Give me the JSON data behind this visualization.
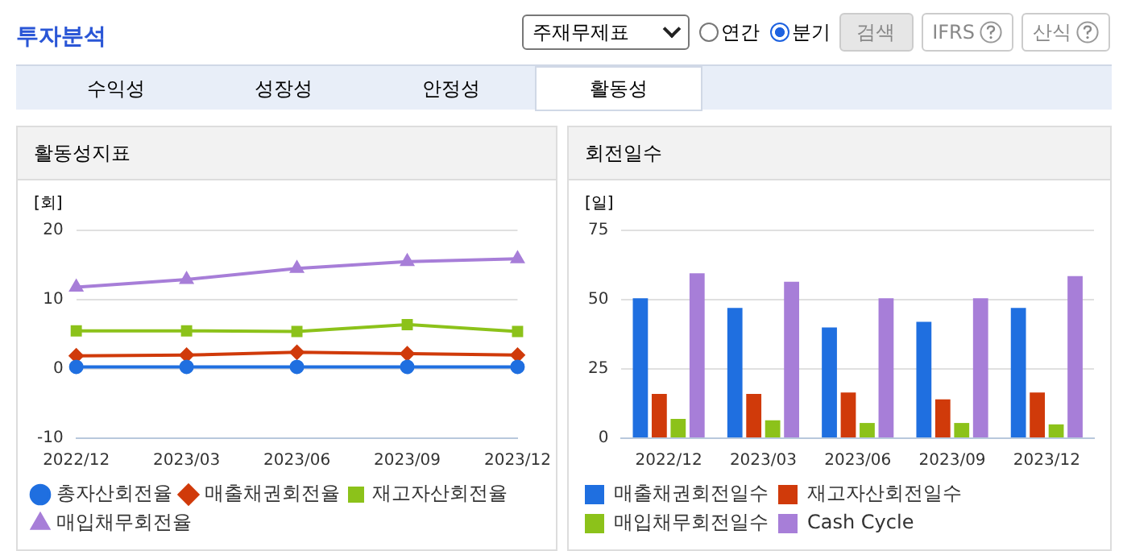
{
  "chart_data": [
    {
      "type": "other",
      "title": "투자분석",
      "annotations": [
        "주재무제표",
        "연간",
        "분기",
        "검색",
        "IFRS",
        "산식",
        "수익성",
        "성장성",
        "안정성",
        "활동성"
      ]
    },
    {
      "type": "line",
      "title": "활동성지표",
      "ylabel": "[회]",
      "categories": [
        "2022/12",
        "2023/03",
        "2023/06",
        "2023/09",
        "2023/12"
      ],
      "ylim": [
        -10,
        20
      ],
      "yticks": [
        -10,
        0,
        10,
        20
      ],
      "grid": "y",
      "legend": "bottom",
      "series": [
        {
          "name": "총자산회전율",
          "color": "#1f6fe0",
          "marker": "circle",
          "values": [
            0.3,
            0.3,
            0.3,
            0.3,
            0.3
          ]
        },
        {
          "name": "매출채권회전율",
          "color": "#d03a0a",
          "marker": "diamond",
          "values": [
            1.9,
            2.0,
            2.4,
            2.2,
            2.0
          ]
        },
        {
          "name": "재고자산회전율",
          "color": "#8cc21a",
          "marker": "square",
          "values": [
            5.5,
            5.5,
            5.4,
            6.4,
            5.4
          ]
        },
        {
          "name": "매입채무회전율",
          "color": "#a77ed8",
          "marker": "triangle",
          "values": [
            11.8,
            12.9,
            14.5,
            15.5,
            15.9
          ]
        }
      ]
    },
    {
      "type": "bar",
      "title": "회전일수",
      "ylabel": "[일]",
      "categories": [
        "2022/12",
        "2023/03",
        "2023/06",
        "2023/09",
        "2023/12"
      ],
      "ylim": [
        0,
        75
      ],
      "yticks": [
        0,
        25,
        50,
        75
      ],
      "grid": "y",
      "legend": "bottom",
      "series": [
        {
          "name": "매출채권회전일수",
          "color": "#1f6fe0",
          "values": [
            50.5,
            47,
            40,
            42,
            47
          ]
        },
        {
          "name": "재고자산회전일수",
          "color": "#d03a0a",
          "values": [
            16,
            16,
            16.5,
            14,
            16.5
          ]
        },
        {
          "name": "매입채무회전일수",
          "color": "#8cc21a",
          "values": [
            7,
            6.5,
            5.5,
            5.5,
            5
          ]
        },
        {
          "name": "Cash Cycle",
          "color": "#a77ed8",
          "values": [
            59.5,
            56.5,
            50.5,
            50.5,
            58.5
          ]
        }
      ]
    }
  ]
}
